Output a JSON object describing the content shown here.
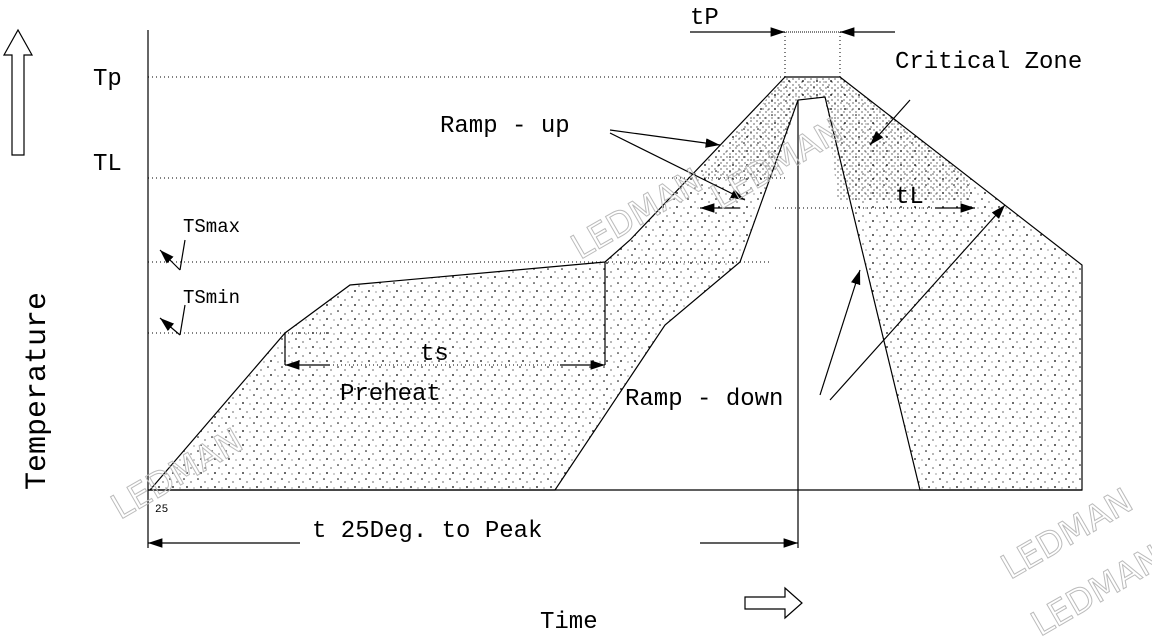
{
  "labels": {
    "tp": "Tp",
    "tl": "TL",
    "tsmax": "TSmax",
    "tsmin": "TSmin",
    "t25": "25",
    "tP": "tP",
    "critical_zone": "Critical Zone",
    "ramp_up": "Ramp - up",
    "tL": "tL",
    "ts": "ts",
    "preheat": "Preheat",
    "ramp_down": "Ramp - down",
    "t25_to_peak": "t 25Deg. to Peak"
  },
  "axes": {
    "y_label": "Temperature",
    "x_label": "Time"
  },
  "watermarks": [
    "LEDMAN",
    "LEDMAN",
    "LEDMAN",
    "LEDMAN",
    "LEDMAN"
  ]
}
